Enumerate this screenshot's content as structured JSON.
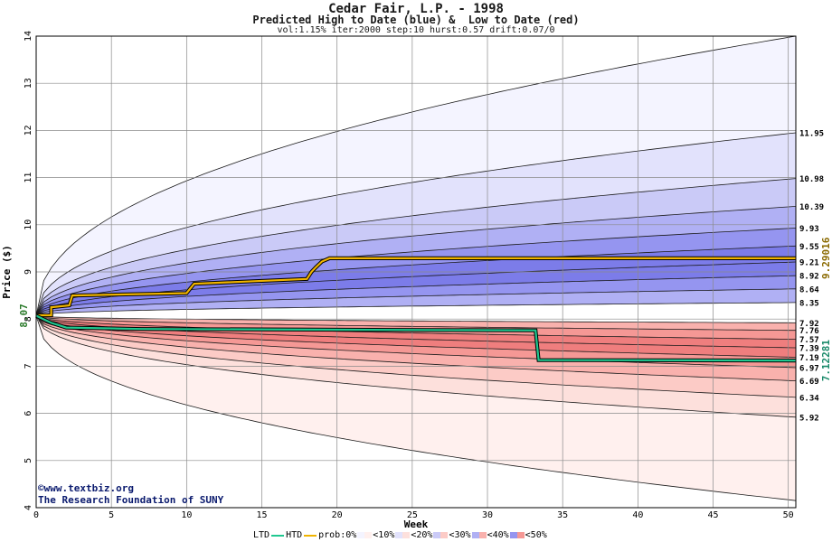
{
  "chart_data": {
    "type": "area",
    "title": "Cedar Fair, L.P. - 1998",
    "subtitle": "Predicted High to Date (blue) &  Low to Date (red)",
    "params": "vol:1.15% iter:2000 step:10 hurst:0.57 drift:0.07/0",
    "xlabel": "Week",
    "ylabel": "Price ($)",
    "xlim": [
      0,
      50.5
    ],
    "ylim": [
      4,
      14
    ],
    "x_ticks": [
      0,
      5,
      10,
      15,
      20,
      25,
      30,
      35,
      40,
      45,
      50
    ],
    "y_ticks": [
      4,
      5,
      6,
      7,
      8,
      9,
      10,
      11,
      12,
      13,
      14
    ],
    "grid": true,
    "start_price": "8.07",
    "start_value": 8.07,
    "final_high_label": "9.29016",
    "final_low_label": "7.12281",
    "upper_band_ends": [
      {
        "label": "11.95",
        "value": 11.95
      },
      {
        "label": "10.98",
        "value": 10.98
      },
      {
        "label": "10.39",
        "value": 10.39
      },
      {
        "label": "9.93",
        "value": 9.93
      },
      {
        "label": "9.55",
        "value": 9.55
      },
      {
        "label": "9.21",
        "value": 9.21
      },
      {
        "label": "8.92",
        "value": 8.92
      },
      {
        "label": "8.64",
        "value": 8.64
      },
      {
        "label": "8.35",
        "value": 8.35
      }
    ],
    "lower_band_ends": [
      {
        "label": "7.92",
        "value": 7.92
      },
      {
        "label": "7.76",
        "value": 7.76
      },
      {
        "label": "7.57",
        "value": 7.57
      },
      {
        "label": "7.39",
        "value": 7.39
      },
      {
        "label": "7.19",
        "value": 7.19
      },
      {
        "label": "6.97",
        "value": 6.97
      },
      {
        "label": "6.69",
        "value": 6.69
      },
      {
        "label": "6.34",
        "value": 6.34
      },
      {
        "label": "5.92",
        "value": 5.92
      }
    ],
    "outer_upper_end": 14.0,
    "outer_lower_end": 4.15,
    "htd_series": {
      "x": [
        0,
        1,
        1,
        2.2,
        2.4,
        10,
        10.5,
        18,
        18.3,
        18.6,
        19,
        19.5,
        50.5
      ],
      "y": [
        8.08,
        8.08,
        8.25,
        8.29,
        8.5,
        8.55,
        8.75,
        8.85,
        9.0,
        9.1,
        9.22,
        9.29,
        9.29
      ]
    },
    "ltd_series": {
      "x": [
        0,
        1,
        2,
        7,
        33.2,
        33.4,
        50.5
      ],
      "y": [
        8.07,
        7.92,
        7.82,
        7.79,
        7.76,
        7.13,
        7.12
      ]
    },
    "colors": {
      "htd_line": "#f0b400",
      "ltd_line": "#20c890",
      "upper_bands": [
        "#f4f4ff",
        "#e2e2fc",
        "#cacaf7",
        "#b0b0f4",
        "#9595f0",
        "#7c7ce9"
      ],
      "lower_bands": [
        "#fff0ee",
        "#fde0dc",
        "#fccbc6",
        "#f9b1ad",
        "#f59895",
        "#ef7e7e"
      ]
    }
  },
  "credits": {
    "line1": "©www.textbiz.org",
    "line2": "The Research Foundation of SUNY"
  },
  "legend": {
    "ltd": "LTD",
    "htd": "HTD",
    "prob": "prob:0%",
    "bins": [
      "<10%",
      "<20%",
      "<30%",
      "<40%",
      "<50%"
    ]
  }
}
